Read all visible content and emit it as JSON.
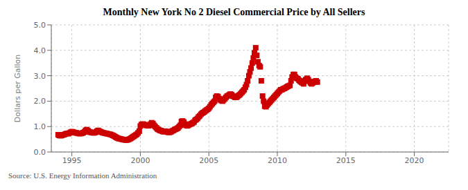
{
  "chart_data": {
    "type": "scatter",
    "title": "Monthly New York No 2 Diesel Commercial Price by All Sellers",
    "y_label": "Dollars per Gallon",
    "annotation": "Source: U.S. Energy Information Administration",
    "xlim": [
      1993.5,
      2022.5
    ],
    "ylim": [
      0.0,
      5.0
    ],
    "xticks": [
      1995,
      2000,
      2005,
      2010,
      2015,
      2020
    ],
    "yticks": [
      {
        "value": 0.0,
        "label": "0.0"
      },
      {
        "value": 1.0,
        "label": "1.0"
      },
      {
        "value": 2.0,
        "label": "2.0"
      },
      {
        "value": 3.0,
        "label": "3.0"
      },
      {
        "value": 4.0,
        "label": "4.0"
      },
      {
        "value": 5.0,
        "label": "5.0"
      }
    ],
    "grid": true,
    "color": "#cc0000",
    "marker": "square",
    "x": [
      1994.0,
      1994.08,
      1994.17,
      1994.25,
      1994.33,
      1994.42,
      1994.5,
      1994.58,
      1994.67,
      1994.75,
      1994.83,
      1994.92,
      1995.0,
      1995.08,
      1995.17,
      1995.25,
      1995.33,
      1995.42,
      1995.5,
      1995.58,
      1995.67,
      1995.75,
      1995.83,
      1995.92,
      1996.0,
      1996.08,
      1996.17,
      1996.25,
      1996.33,
      1996.42,
      1996.5,
      1996.58,
      1996.67,
      1996.75,
      1996.83,
      1996.92,
      1997.0,
      1997.08,
      1997.17,
      1997.25,
      1997.33,
      1997.42,
      1997.5,
      1997.58,
      1997.67,
      1997.75,
      1997.83,
      1997.92,
      1998.0,
      1998.08,
      1998.17,
      1998.25,
      1998.33,
      1998.42,
      1998.5,
      1998.58,
      1998.67,
      1998.75,
      1998.83,
      1998.92,
      1999.0,
      1999.08,
      1999.17,
      1999.25,
      1999.33,
      1999.42,
      1999.5,
      1999.58,
      1999.67,
      1999.75,
      1999.83,
      1999.92,
      2000.0,
      2000.08,
      2000.17,
      2000.25,
      2000.33,
      2000.42,
      2000.5,
      2000.58,
      2000.67,
      2000.75,
      2000.83,
      2000.92,
      2001.0,
      2001.08,
      2001.17,
      2001.25,
      2001.33,
      2001.42,
      2001.5,
      2001.58,
      2001.67,
      2001.75,
      2001.83,
      2001.92,
      2002.0,
      2002.08,
      2002.17,
      2002.25,
      2002.33,
      2002.42,
      2002.5,
      2002.58,
      2002.67,
      2002.75,
      2002.83,
      2002.92,
      2003.0,
      2003.08,
      2003.17,
      2003.25,
      2003.33,
      2003.42,
      2003.5,
      2003.58,
      2003.67,
      2003.75,
      2003.83,
      2003.92,
      2004.0,
      2004.08,
      2004.17,
      2004.25,
      2004.33,
      2004.42,
      2004.5,
      2004.58,
      2004.67,
      2004.75,
      2004.83,
      2004.92,
      2005.0,
      2005.08,
      2005.17,
      2005.25,
      2005.33,
      2005.42,
      2005.5,
      2005.58,
      2005.67,
      2005.75,
      2005.83,
      2005.92,
      2006.0,
      2006.08,
      2006.17,
      2006.25,
      2006.33,
      2006.42,
      2006.5,
      2006.58,
      2006.67,
      2006.75,
      2006.83,
      2006.92,
      2007.0,
      2007.08,
      2007.17,
      2007.25,
      2007.33,
      2007.42,
      2007.5,
      2007.58,
      2007.67,
      2007.75,
      2007.83,
      2007.92,
      2008.0,
      2008.08,
      2008.17,
      2008.25,
      2008.33,
      2008.42,
      2008.5,
      2008.58,
      2008.67,
      2008.75,
      2008.83,
      2008.92,
      2009.0,
      2009.08,
      2009.17,
      2009.25,
      2009.33,
      2009.42,
      2009.5,
      2009.58,
      2009.67,
      2009.75,
      2009.83,
      2009.92,
      2010.0,
      2010.08,
      2010.17,
      2010.25,
      2010.33,
      2010.42,
      2010.5,
      2010.58,
      2010.67,
      2010.75,
      2010.83,
      2010.92,
      2011.0,
      2011.08,
      2011.17,
      2011.25,
      2011.33,
      2011.42,
      2011.5,
      2011.58,
      2011.67,
      2011.75,
      2011.83,
      2011.92,
      2012.0,
      2012.08,
      2012.17,
      2012.25,
      2012.33,
      2012.42,
      2012.5,
      2012.58,
      2012.67,
      2012.75,
      2012.83,
      2012.92
    ],
    "values": [
      0.68,
      0.65,
      0.64,
      0.65,
      0.67,
      0.68,
      0.7,
      0.72,
      0.73,
      0.72,
      0.75,
      0.78,
      0.8,
      0.79,
      0.77,
      0.76,
      0.75,
      0.74,
      0.73,
      0.72,
      0.73,
      0.74,
      0.76,
      0.79,
      0.85,
      0.88,
      0.84,
      0.8,
      0.78,
      0.77,
      0.76,
      0.75,
      0.76,
      0.78,
      0.82,
      0.85,
      0.82,
      0.8,
      0.78,
      0.76,
      0.75,
      0.74,
      0.73,
      0.72,
      0.71,
      0.7,
      0.69,
      0.67,
      0.65,
      0.63,
      0.6,
      0.57,
      0.55,
      0.53,
      0.52,
      0.51,
      0.5,
      0.49,
      0.48,
      0.47,
      0.47,
      0.48,
      0.5,
      0.52,
      0.55,
      0.58,
      0.61,
      0.64,
      0.67,
      0.7,
      0.75,
      0.82,
      1.02,
      1.08,
      1.1,
      1.09,
      1.07,
      1.05,
      1.04,
      1.03,
      1.05,
      1.1,
      1.15,
      1.12,
      1.05,
      1.0,
      0.95,
      0.9,
      0.88,
      0.85,
      0.84,
      0.82,
      0.8,
      0.8,
      0.82,
      0.8,
      0.78,
      0.77,
      0.78,
      0.8,
      0.83,
      0.85,
      0.88,
      0.9,
      0.92,
      0.95,
      1.0,
      1.05,
      1.2,
      1.22,
      1.18,
      1.1,
      1.05,
      1.03,
      1.05,
      1.08,
      1.1,
      1.12,
      1.15,
      1.18,
      1.25,
      1.28,
      1.32,
      1.38,
      1.42,
      1.48,
      1.52,
      1.55,
      1.58,
      1.62,
      1.65,
      1.68,
      1.72,
      1.78,
      1.85,
      1.9,
      1.95,
      2.0,
      2.15,
      2.2,
      2.18,
      2.1,
      2.05,
      2.02,
      2.0,
      2.05,
      2.1,
      2.15,
      2.2,
      2.22,
      2.25,
      2.28,
      2.25,
      2.2,
      2.18,
      2.15,
      2.15,
      2.18,
      2.22,
      2.25,
      2.3,
      2.35,
      2.4,
      2.45,
      2.55,
      2.65,
      2.8,
      3.0,
      3.15,
      3.3,
      3.5,
      3.7,
      3.9,
      4.1,
      3.8,
      3.55,
      3.4,
      3.35,
      2.8,
      2.2,
      2.0,
      1.8,
      1.78,
      1.85,
      1.9,
      1.95,
      2.0,
      2.05,
      2.1,
      2.15,
      2.2,
      2.25,
      2.3,
      2.35,
      2.4,
      2.45,
      2.45,
      2.48,
      2.5,
      2.52,
      2.55,
      2.58,
      2.6,
      2.62,
      2.8,
      2.95,
      3.05,
      3.05,
      2.95,
      2.9,
      2.88,
      2.82,
      2.78,
      2.75,
      2.72,
      2.68,
      2.8,
      2.85,
      2.9,
      2.85,
      2.78,
      2.72,
      2.68,
      2.72,
      2.75,
      2.78,
      2.8,
      2.75
    ]
  }
}
